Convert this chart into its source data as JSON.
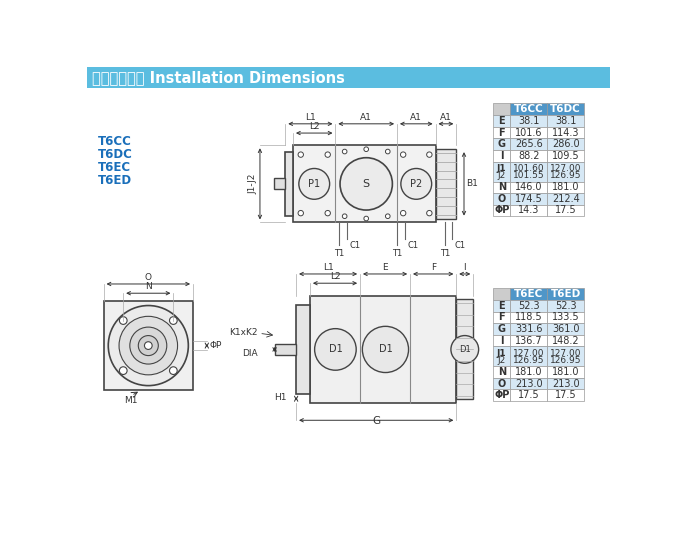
{
  "title_chinese": "安装连接尺寸",
  "title_english": " Installation Dimensions",
  "title_bg_top": "#6ec6e6",
  "title_bg_bot": "#a8dff0",
  "model_labels": [
    "T6CC",
    "T6DC",
    "T6EC",
    "T6ED"
  ],
  "model_color": "#1a6fba",
  "table1": {
    "headers": [
      "",
      "T6CC",
      "T6DC"
    ],
    "rows": [
      [
        "E",
        "38.1",
        "38.1"
      ],
      [
        "F",
        "101.6",
        "114.3"
      ],
      [
        "G",
        "265.6",
        "286.0"
      ],
      [
        "I",
        "88.2",
        "109.5"
      ],
      [
        "J1\nJ2",
        "101.60\n101.55",
        "127.00\n126.95"
      ],
      [
        "N",
        "146.0",
        "181.0"
      ],
      [
        "O",
        "174.5",
        "212.4"
      ],
      [
        "ΦP",
        "14.3",
        "17.5"
      ]
    ],
    "alt_rows": [
      0,
      2,
      4,
      6
    ]
  },
  "table2": {
    "headers": [
      "",
      "T6EC",
      "T6ED"
    ],
    "rows": [
      [
        "E",
        "52.3",
        "52.3"
      ],
      [
        "F",
        "118.5",
        "133.5"
      ],
      [
        "G",
        "331.6",
        "361.0"
      ],
      [
        "I",
        "136.7",
        "148.2"
      ],
      [
        "J1\nJ2",
        "127.00\n126.95",
        "127.00\n126.95"
      ],
      [
        "N",
        "181.0",
        "181.0"
      ],
      [
        "O",
        "213.0",
        "213.0"
      ],
      [
        "ΦP",
        "17.5",
        "17.5"
      ]
    ],
    "alt_rows": [
      0,
      2,
      4,
      6
    ]
  },
  "bg_color": "#ffffff",
  "table_header_bg": "#4f96c8",
  "table_alt_bg": "#d6e8f5",
  "table_border": "#999999",
  "line_color": "#444444",
  "dim_color": "#333333"
}
